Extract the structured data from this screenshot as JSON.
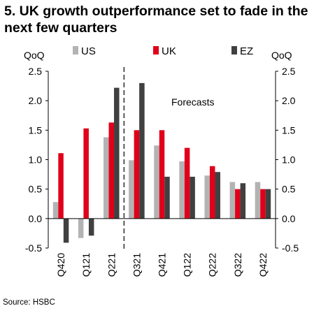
{
  "chart_data": {
    "type": "bar",
    "title": "5. UK growth outperformance set to fade in the next few quarters",
    "ylabel_left": "QoQ",
    "ylabel_right": "QoQ",
    "annotation": "Forecasts",
    "source": "Source: HSBC",
    "categories": [
      "Q420",
      "Q121",
      "Q221",
      "Q321",
      "Q421",
      "Q122",
      "Q222",
      "Q322",
      "Q422"
    ],
    "series": [
      {
        "name": "US",
        "color": "#b3b3b3",
        "values": [
          0.28,
          -0.33,
          1.38,
          0.99,
          1.24,
          0.97,
          0.73,
          0.62,
          0.62
        ]
      },
      {
        "name": "UK",
        "color": "#e0001b",
        "values": [
          1.11,
          1.53,
          1.63,
          1.5,
          1.5,
          1.2,
          0.89,
          0.5,
          0.5
        ]
      },
      {
        "name": "EZ",
        "color": "#404040",
        "values": [
          -0.41,
          -0.29,
          2.22,
          2.3,
          0.71,
          0.71,
          0.79,
          0.6,
          0.5
        ]
      }
    ],
    "ylim": [
      -0.5,
      2.5
    ],
    "yticks": [
      "-0.5",
      "0.0",
      "0.5",
      "1.0",
      "1.5",
      "2.0",
      "2.5"
    ],
    "ytick_values": [
      -0.5,
      0,
      0.5,
      1.0,
      1.5,
      2.0,
      2.5
    ],
    "forecast_after_index": 2,
    "legend_position": "top",
    "grid": false
  }
}
